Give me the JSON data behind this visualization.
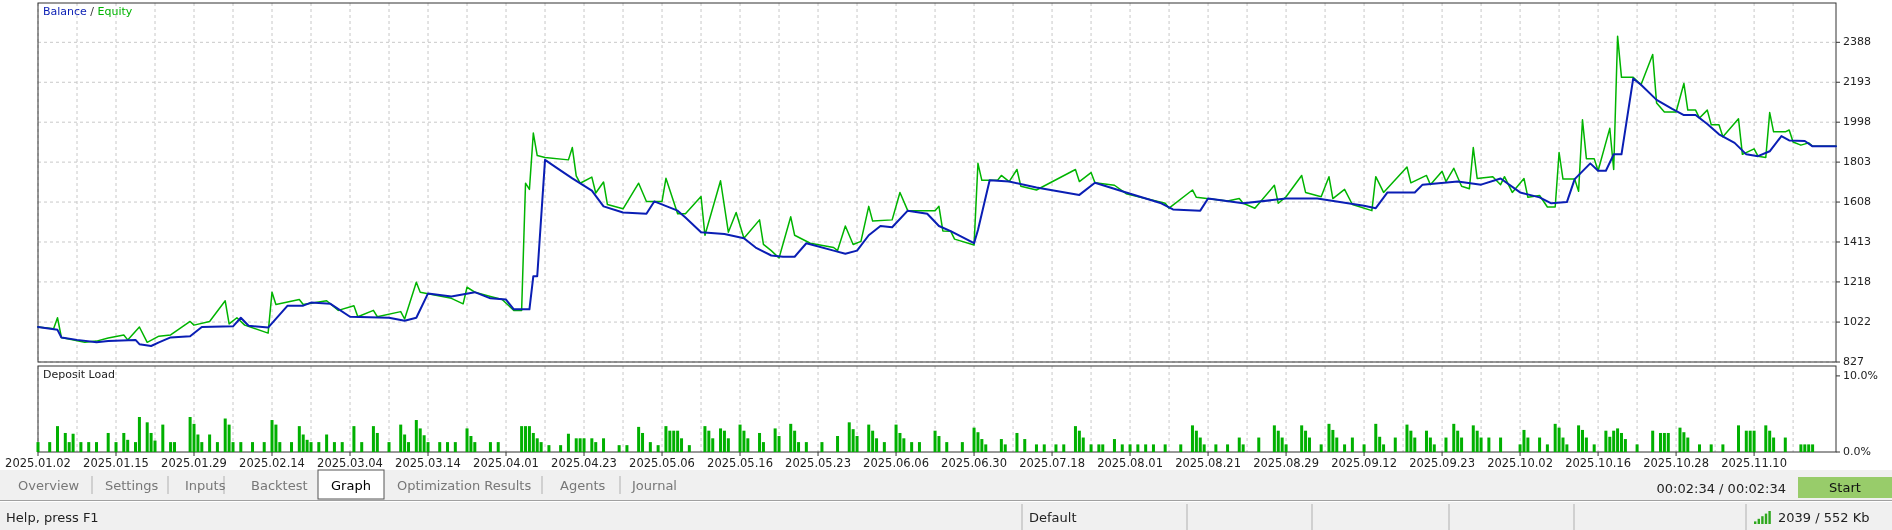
{
  "chart_data": [
    {
      "type": "line",
      "tick_labels": "y",
      "legend": "top left",
      "annotations": [
        "/"
      ],
      "grid": true,
      "ylim": [
        827,
        2580
      ],
      "yticks": [
        827,
        1022,
        1218,
        1413,
        1608,
        1803,
        1998,
        2193,
        2388
      ],
      "categories": [
        "2025.01.02",
        null,
        null,
        null,
        null,
        null,
        null,
        null,
        null,
        null,
        null,
        null,
        null,
        null,
        null,
        null,
        null,
        null,
        null,
        null,
        "2025.01.15",
        null,
        null,
        null,
        null,
        null,
        null,
        null,
        null,
        null,
        null,
        null,
        null,
        null,
        null,
        null,
        null,
        null,
        null,
        null,
        "2025.01.29",
        null,
        null,
        null,
        null,
        null,
        null,
        null,
        null,
        null,
        null,
        null,
        null,
        null,
        null,
        null,
        null,
        null,
        null,
        null,
        "2025.02.14",
        null,
        null,
        null,
        null,
        null,
        null,
        null,
        null,
        null,
        null,
        null,
        null,
        null,
        null,
        null,
        null,
        null,
        null,
        null,
        "2025.03.04",
        null,
        null,
        null,
        null,
        null,
        null,
        null,
        null,
        null,
        null,
        null,
        null,
        null,
        null,
        null,
        null,
        null,
        null,
        null,
        "2025.03.14",
        null,
        null,
        null,
        null,
        null,
        null,
        null,
        null,
        null,
        null,
        null,
        null,
        null,
        null,
        null,
        null,
        null,
        null,
        null,
        "2025.04.01",
        null,
        null,
        null,
        null,
        null,
        null,
        null,
        null,
        null,
        null,
        null,
        null,
        null,
        null,
        null,
        null,
        null,
        null,
        null,
        "2025.04.23",
        null,
        null,
        null,
        null,
        null,
        null,
        null,
        null,
        null,
        null,
        null,
        null,
        null,
        null,
        null,
        null,
        null,
        null,
        null,
        "2025.05.06",
        null,
        null,
        null,
        null,
        null,
        null,
        null,
        null,
        null,
        null,
        null,
        null,
        null,
        null,
        null,
        null,
        null,
        null,
        null,
        "2025.05.16",
        null,
        null,
        null,
        null,
        null,
        null,
        null,
        null,
        null,
        null,
        null,
        null,
        null,
        null,
        null,
        null,
        null,
        null,
        null,
        "2025.05.23",
        null,
        null,
        null,
        null,
        null,
        null,
        null,
        null,
        null,
        null,
        null,
        null,
        null,
        null,
        null,
        null,
        null,
        null,
        null,
        "2025.06.06",
        null,
        null,
        null,
        null,
        null,
        null,
        null,
        null,
        null,
        null,
        null,
        null,
        null,
        null,
        null,
        null,
        null,
        null,
        null,
        "2025.06.30",
        null,
        null,
        null,
        null,
        null,
        null,
        null,
        null,
        null,
        null,
        null,
        null,
        null,
        null,
        null,
        null,
        null,
        null,
        null,
        "2025.07.18",
        null,
        null,
        null,
        null,
        null,
        null,
        null,
        null,
        null,
        null,
        null,
        null,
        null,
        null,
        null,
        null,
        null,
        null,
        null,
        "2025.08.01",
        null,
        null,
        null,
        null,
        null,
        null,
        null,
        null,
        null,
        null,
        null,
        null,
        null,
        null,
        null,
        null,
        null,
        null,
        null,
        "2025.08.21",
        null,
        null,
        null,
        null,
        null,
        null,
        null,
        null,
        null,
        null,
        null,
        null,
        null,
        null,
        null,
        null,
        null,
        null,
        null,
        "2025.08.29",
        null,
        null,
        null,
        null,
        null,
        null,
        null,
        null,
        null,
        null,
        null,
        null,
        null,
        null,
        null,
        null,
        null,
        null,
        null,
        "2025.09.12",
        null,
        null,
        null,
        null,
        null,
        null,
        null,
        null,
        null,
        null,
        null,
        null,
        null,
        null,
        null,
        null,
        null,
        null,
        null,
        "2025.09.23",
        null,
        null,
        null,
        null,
        null,
        null,
        null,
        null,
        null,
        null,
        null,
        null,
        null,
        null,
        null,
        null,
        null,
        null,
        null,
        "2025.10.02",
        null,
        null,
        null,
        null,
        null,
        null,
        null,
        null,
        null,
        null,
        null,
        null,
        null,
        null,
        null,
        null,
        null,
        null,
        null,
        "2025.10.16",
        null,
        null,
        null,
        null,
        null,
        null,
        null,
        null,
        null,
        null,
        null,
        null,
        null,
        null,
        null,
        null,
        null,
        null,
        null,
        "2025.10.28",
        null,
        null,
        null,
        null,
        null,
        null,
        null,
        null,
        null,
        null,
        null,
        null,
        null,
        null,
        null,
        null,
        null,
        null,
        null,
        "2025.11.10",
        null,
        null,
        null,
        null,
        null,
        null,
        null,
        null,
        null,
        null,
        null,
        null,
        null,
        null,
        null,
        null,
        null,
        null,
        null,
        null,
        null
      ],
      "series": [
        {
          "name": "Balance",
          "color": "#0a1eb4",
          "values": [
            998,
            null,
            null,
            null,
            null,
            984,
            947,
            null,
            null,
            null,
            935,
            null,
            null,
            null,
            null,
            923,
            null,
            null,
            929,
            null,
            null,
            null,
            null,
            null,
            null,
            935,
            914,
            null,
            null,
            905,
            null,
            923,
            null,
            null,
            947,
            null,
            null,
            null,
            null,
            953,
            null,
            null,
            998,
            null,
            null,
            null,
            null,
            null,
            null,
            null,
            1001,
            null,
            1043,
            null,
            1004,
            null,
            null,
            null,
            null,
            995,
            null,
            null,
            null,
            null,
            1102,
            null,
            null,
            null,
            1102,
            null,
            1117,
            null,
            null,
            null,
            null,
            1111,
            null,
            null,
            null,
            null,
            1048,
            null,
            null,
            null,
            null,
            null,
            null,
            null,
            null,
            null,
            1043,
            null,
            null,
            null,
            1028,
            null,
            null,
            1043,
            null,
            null,
            1162,
            null,
            null,
            null,
            null,
            null,
            1147,
            null,
            null,
            null,
            null,
            null,
            1168,
            null,
            null,
            null,
            1138,
            null,
            null,
            null,
            1132,
            null,
            1084,
            null,
            null,
            null,
            1084,
            1246,
            1246,
            null,
            1814,
            null,
            null,
            1775,
            null,
            null,
            null,
            1724,
            null,
            null,
            null,
            null,
            1664,
            null,
            null,
            1587,
            null,
            null,
            null,
            null,
            1557,
            null,
            null,
            null,
            null,
            null,
            1551,
            null,
            1611,
            null,
            null,
            null,
            null,
            null,
            1566,
            null,
            1533,
            null,
            null,
            null,
            1461,
            null,
            null,
            null,
            null,
            null,
            1452,
            null,
            null,
            null,
            null,
            1431,
            null,
            null,
            1386,
            null,
            null,
            null,
            1347,
            null,
            null,
            1341,
            null,
            null,
            1341,
            null,
            null,
            1407,
            null,
            null,
            null,
            null,
            null,
            null,
            1371,
            null,
            null,
            1356,
            null,
            null,
            1371,
            null,
            null,
            1446,
            null,
            null,
            1491,
            null,
            null,
            1485,
            null,
            null,
            null,
            1566,
            null,
            null,
            null,
            null,
            1551,
            null,
            null,
            1491,
            null,
            null,
            1466,
            null,
            null,
            null,
            null,
            null,
            1407,
            1472,
            null,
            null,
            1714,
            null,
            null,
            null,
            null,
            1708,
            null,
            null,
            null,
            null,
            null,
            null,
            1679,
            null,
            null,
            null,
            null,
            null,
            null,
            null,
            null,
            null,
            null,
            1643,
            null,
            null,
            null,
            1702,
            null,
            null,
            null,
            null,
            null,
            null,
            null,
            1655,
            null,
            null,
            null,
            null,
            null,
            null,
            null,
            null,
            1602,
            null,
            null,
            1572,
            null,
            null,
            null,
            null,
            null,
            null,
            1566,
            null,
            1625,
            null,
            null,
            null,
            null,
            null,
            null,
            null,
            null,
            1602,
            null,
            null,
            null,
            null,
            null,
            null,
            null,
            null,
            null,
            null,
            1625,
            null,
            null,
            null,
            null,
            null,
            null,
            null,
            1625,
            null,
            null,
            null,
            null,
            null,
            null,
            null,
            null,
            null,
            null,
            null,
            1590,
            null,
            null,
            1578,
            null,
            null,
            1655,
            null,
            null,
            null,
            null,
            null,
            null,
            1655,
            null,
            1693,
            null,
            null,
            null,
            null,
            null,
            null,
            null,
            null,
            1708,
            null,
            null,
            null,
            null,
            null,
            1693,
            null,
            null,
            null,
            null,
            1723,
            null,
            null,
            null,
            null,
            1655,
            null,
            null,
            null,
            null,
            1631,
            null,
            null,
            1602,
            null,
            null,
            null,
            1608,
            null,
            1720,
            null,
            null,
            null,
            1797,
            null,
            1761,
            null,
            1761,
            null,
            1841,
            null,
            1841,
            null,
            null,
            2211,
            null,
            2181,
            null,
            null,
            null,
            2107,
            null,
            null,
            null,
            2063,
            null,
            null,
            2033,
            null,
            null,
            2033,
            null,
            null,
            1989,
            null,
            null,
            1939,
            null,
            null,
            null,
            1897,
            null,
            null,
            1841,
            null,
            null,
            1832,
            null,
            null,
            1856,
            null,
            null,
            1930,
            null,
            1909,
            null,
            null,
            null,
            1906,
            null,
            1880,
            null,
            null,
            null,
            null,
            null,
            1880
          ]
        },
        {
          "name": "Equity",
          "color": "#00b400",
          "values": [
            998,
            null,
            null,
            null,
            989,
            1043,
            947,
            null,
            null,
            null,
            null,
            null,
            923,
            null,
            null,
            929,
            null,
            null,
            944,
            null,
            null,
            null,
            959,
            935,
            null,
            null,
            998,
            null,
            923,
            null,
            null,
            953,
            null,
            null,
            959,
            null,
            null,
            null,
            null,
            1025,
            1007,
            null,
            null,
            null,
            1025,
            null,
            null,
            null,
            1126,
            1013,
            null,
            1043,
            null,
            1007,
            null,
            null,
            null,
            null,
            null,
            968,
            1168,
            1108,
            null,
            null,
            null,
            null,
            null,
            1132,
            1108,
            null,
            null,
            null,
            null,
            null,
            1126,
            null,
            null,
            1079,
            null,
            null,
            null,
            1102,
            1048,
            null,
            null,
            null,
            1079,
            1048,
            null,
            null,
            null,
            null,
            null,
            1073,
            1037,
            null,
            null,
            1216,
            1168,
            null,
            null,
            null,
            null,
            null,
            null,
            null,
            1138,
            null,
            null,
            1111,
            1192,
            null,
            1168,
            null,
            null,
            null,
            1147,
            null,
            null,
            1132,
            null,
            null,
            1079,
            null,
            1079,
            1700,
            1670,
            1945,
            1835,
            null,
            1826,
            null,
            null,
            null,
            null,
            null,
            1814,
            1874,
            1736,
            1700,
            null,
            null,
            1730,
            1652,
            null,
            1706,
            1596,
            null,
            null,
            null,
            1575,
            null,
            null,
            null,
            1700,
            null,
            1611,
            null,
            null,
            null,
            1611,
            1724,
            null,
            null,
            1551,
            null,
            1551,
            null,
            null,
            null,
            1635,
            1446,
            null,
            null,
            null,
            1712,
            null,
            1461,
            null,
            1557,
            null,
            1431,
            null,
            null,
            null,
            1521,
            1401,
            null,
            1371,
            null,
            1335,
            null,
            null,
            1536,
            1446,
            null,
            null,
            null,
            1407,
            null,
            null,
            null,
            null,
            null,
            1386,
            1371,
            null,
            1491,
            null,
            1401,
            null,
            1416,
            null,
            1587,
            1515,
            null,
            null,
            null,
            null,
            1521,
            null,
            1655,
            null,
            1566,
            null,
            null,
            null,
            null,
            null,
            null,
            1566,
            1587,
            1467,
            null,
            1466,
            1427,
            null,
            null,
            null,
            null,
            1398,
            1797,
            1714,
            null,
            null,
            null,
            1714,
            1738,
            null,
            1708,
            null,
            1767,
            1685,
            null,
            null,
            null,
            1667,
            null,
            null,
            null,
            null,
            null,
            null,
            null,
            null,
            null,
            1767,
            1708,
            null,
            null,
            1752,
            1702,
            null,
            null,
            null,
            null,
            1690,
            null,
            null,
            1649,
            null,
            null,
            null,
            null,
            null,
            null,
            null,
            null,
            null,
            1602,
            1578,
            null,
            null,
            null,
            null,
            null,
            1667,
            1631,
            null,
            null,
            null,
            null,
            null,
            null,
            null,
            1613,
            null,
            null,
            1625,
            1602,
            null,
            null,
            1578,
            null,
            null,
            null,
            null,
            1690,
            1602,
            null,
            1634,
            null,
            null,
            null,
            1738,
            1655,
            null,
            null,
            null,
            1634,
            null,
            1732,
            1625,
            null,
            null,
            1670,
            null,
            1596,
            null,
            null,
            null,
            null,
            1566,
            1732,
            null,
            1655,
            null,
            null,
            null,
            null,
            null,
            1779,
            1702,
            null,
            null,
            null,
            1738,
            1693,
            null,
            null,
            1758,
            1708,
            null,
            1773,
            null,
            1685,
            null,
            1673,
            1874,
            1723,
            null,
            null,
            null,
            1732,
            null,
            1693,
            1732,
            null,
            1655,
            null,
            null,
            1723,
            1631,
            null,
            null,
            1640,
            null,
            1584,
            null,
            1584,
            1850,
            1720,
            null,
            null,
            1720,
            1661,
            2010,
            1820,
            null,
            1820,
            1761,
            null,
            null,
            1968,
            1767,
            2418,
            2217,
            null,
            null,
            2217,
            null,
            2181,
            null,
            null,
            2329,
            2092,
            null,
            2048,
            null,
            null,
            2048,
            null,
            2187,
            2057,
            null,
            2057,
            2018,
            null,
            2057,
            1986,
            null,
            1986,
            1927,
            null,
            null,
            null,
            2015,
            1841,
            null,
            null,
            1868,
            1832,
            null,
            1826,
            2045,
            1951,
            null,
            null,
            1951,
            1960,
            1901,
            null,
            1886,
            null,
            1897,
            1880,
            null,
            null,
            null,
            null,
            null,
            1880
          ]
        }
      ]
    },
    {
      "type": "bar",
      "title": "Deposit Load",
      "grid": "x",
      "ylim": [
        0,
        11.3
      ],
      "yticks": [
        {
          "value": 0,
          "label": "0.0%"
        },
        {
          "value": 10,
          "label": "10.0%"
        }
      ],
      "color": "#00b000",
      "categories": [
        "2025.01.02",
        null,
        null,
        null,
        null,
        null,
        null,
        null,
        null,
        null,
        null,
        null,
        null,
        null,
        null,
        null,
        null,
        null,
        null,
        null,
        "2025.01.15",
        null,
        null,
        null,
        null,
        null,
        null,
        null,
        null,
        null,
        null,
        null,
        null,
        null,
        null,
        null,
        null,
        null,
        null,
        null,
        "2025.01.29",
        null,
        null,
        null,
        null,
        null,
        null,
        null,
        null,
        null,
        null,
        null,
        null,
        null,
        null,
        null,
        null,
        null,
        null,
        null,
        "2025.02.14",
        null,
        null,
        null,
        null,
        null,
        null,
        null,
        null,
        null,
        null,
        null,
        null,
        null,
        null,
        null,
        null,
        null,
        null,
        null,
        "2025.03.04",
        null,
        null,
        null,
        null,
        null,
        null,
        null,
        null,
        null,
        null,
        null,
        null,
        null,
        null,
        null,
        null,
        null,
        null,
        null,
        "2025.03.14",
        null,
        null,
        null,
        null,
        null,
        null,
        null,
        null,
        null,
        null,
        null,
        null,
        null,
        null,
        null,
        null,
        null,
        null,
        null,
        "2025.04.01",
        null,
        null,
        null,
        null,
        null,
        null,
        null,
        null,
        null,
        null,
        null,
        null,
        null,
        null,
        null,
        null,
        null,
        null,
        null,
        "2025.04.23",
        null,
        null,
        null,
        null,
        null,
        null,
        null,
        null,
        null,
        null,
        null,
        null,
        null,
        null,
        null,
        null,
        null,
        null,
        null,
        "2025.05.06",
        null,
        null,
        null,
        null,
        null,
        null,
        null,
        null,
        null,
        null,
        null,
        null,
        null,
        null,
        null,
        null,
        null,
        null,
        null,
        "2025.05.16",
        null,
        null,
        null,
        null,
        null,
        null,
        null,
        null,
        null,
        null,
        null,
        null,
        null,
        null,
        null,
        null,
        null,
        null,
        null,
        "2025.05.23",
        null,
        null,
        null,
        null,
        null,
        null,
        null,
        null,
        null,
        null,
        null,
        null,
        null,
        null,
        null,
        null,
        null,
        null,
        null,
        "2025.06.06",
        null,
        null,
        null,
        null,
        null,
        null,
        null,
        null,
        null,
        null,
        null,
        null,
        null,
        null,
        null,
        null,
        null,
        null,
        null,
        "2025.06.30",
        null,
        null,
        null,
        null,
        null,
        null,
        null,
        null,
        null,
        null,
        null,
        null,
        null,
        null,
        null,
        null,
        null,
        null,
        null,
        "2025.07.18",
        null,
        null,
        null,
        null,
        null,
        null,
        null,
        null,
        null,
        null,
        null,
        null,
        null,
        null,
        null,
        null,
        null,
        null,
        null,
        "2025.08.01",
        null,
        null,
        null,
        null,
        null,
        null,
        null,
        null,
        null,
        null,
        null,
        null,
        null,
        null,
        null,
        null,
        null,
        null,
        null,
        "2025.08.21",
        null,
        null,
        null,
        null,
        null,
        null,
        null,
        null,
        null,
        null,
        null,
        null,
        null,
        null,
        null,
        null,
        null,
        null,
        null,
        "2025.08.29",
        null,
        null,
        null,
        null,
        null,
        null,
        null,
        null,
        null,
        null,
        null,
        null,
        null,
        null,
        null,
        null,
        null,
        null,
        null,
        "2025.09.12",
        null,
        null,
        null,
        null,
        null,
        null,
        null,
        null,
        null,
        null,
        null,
        null,
        null,
        null,
        null,
        null,
        null,
        null,
        null,
        "2025.09.23",
        null,
        null,
        null,
        null,
        null,
        null,
        null,
        null,
        null,
        null,
        null,
        null,
        null,
        null,
        null,
        null,
        null,
        null,
        null,
        "2025.10.02",
        null,
        null,
        null,
        null,
        null,
        null,
        null,
        null,
        null,
        null,
        null,
        null,
        null,
        null,
        null,
        null,
        null,
        null,
        null,
        "2025.10.16",
        null,
        null,
        null,
        null,
        null,
        null,
        null,
        null,
        null,
        null,
        null,
        null,
        null,
        null,
        null,
        null,
        null,
        null,
        null,
        "2025.10.28",
        null,
        null,
        null,
        null,
        null,
        null,
        null,
        null,
        null,
        null,
        null,
        null,
        null,
        null,
        null,
        null,
        null,
        null,
        null,
        "2025.11.10",
        null,
        null,
        null,
        null,
        null,
        null,
        null,
        null,
        null,
        null,
        null,
        null,
        null,
        null,
        null,
        null,
        null,
        null,
        null,
        null,
        null
      ],
      "values": [
        1.3,
        null,
        null,
        1.3,
        null,
        3.4,
        null,
        2.5,
        1.3,
        2.4,
        null,
        1.3,
        null,
        1.3,
        null,
        1.3,
        null,
        null,
        2.5,
        null,
        1.3,
        null,
        2.5,
        1.6,
        null,
        1.3,
        4.6,
        null,
        3.9,
        2.5,
        1.5,
        null,
        3.6,
        null,
        1.3,
        1.3,
        null,
        null,
        null,
        4.6,
        3.7,
        2.3,
        1.3,
        null,
        2.3,
        null,
        1.3,
        null,
        4.4,
        3.6,
        1.3,
        null,
        1.3,
        null,
        null,
        1.3,
        null,
        null,
        1.3,
        null,
        4.2,
        3.6,
        1.3,
        null,
        null,
        1.3,
        null,
        3.4,
        2.3,
        1.6,
        1.3,
        null,
        1.3,
        null,
        2.3,
        null,
        1.3,
        null,
        1.3,
        null,
        null,
        3.4,
        null,
        1.3,
        null,
        null,
        3.4,
        2.5,
        null,
        null,
        1.3,
        null,
        null,
        3.6,
        2.3,
        1.3,
        null,
        4.2,
        3.1,
        2.2,
        1.3,
        null,
        null,
        1.3,
        null,
        1.3,
        null,
        1.3,
        null,
        null,
        3.1,
        2.1,
        1.3,
        null,
        null,
        null,
        1.3,
        null,
        1.3,
        null,
        null,
        null,
        null,
        null,
        3.4,
        3.4,
        3.4,
        2.5,
        1.8,
        1.3,
        null,
        0.9,
        null,
        null,
        0.9,
        null,
        2.4,
        null,
        1.8,
        1.8,
        1.8,
        null,
        1.8,
        1.3,
        null,
        1.8,
        null,
        null,
        null,
        0.9,
        null,
        0.9,
        null,
        null,
        3.3,
        2.5,
        null,
        1.3,
        null,
        0.9,
        null,
        3.4,
        2.8,
        2.8,
        2.8,
        1.8,
        null,
        0.9,
        null,
        null,
        null,
        3.4,
        2.8,
        1.8,
        null,
        3.1,
        2.8,
        1.8,
        null,
        null,
        3.6,
        2.8,
        1.8,
        null,
        null,
        2.5,
        1.3,
        null,
        null,
        3.1,
        2.1,
        null,
        null,
        3.7,
        2.8,
        1.3,
        null,
        1.3,
        null,
        null,
        null,
        1.3,
        null,
        null,
        null,
        2.1,
        null,
        null,
        3.9,
        3.0,
        2.1,
        null,
        null,
        3.6,
        2.8,
        1.8,
        null,
        1.3,
        null,
        null,
        3.6,
        2.5,
        1.8,
        null,
        1.3,
        null,
        1.3,
        null,
        null,
        null,
        2.8,
        2.1,
        null,
        1.3,
        null,
        null,
        null,
        1.3,
        null,
        null,
        3.2,
        2.6,
        1.7,
        1.0,
        null,
        null,
        null,
        1.7,
        1.0,
        null,
        null,
        2.5,
        null,
        1.7,
        null,
        null,
        1.0,
        null,
        1.0,
        null,
        null,
        1.0,
        null,
        1.0,
        null,
        null,
        3.4,
        2.8,
        1.9,
        null,
        1.0,
        null,
        1.0,
        1.0,
        null,
        null,
        1.7,
        null,
        1.0,
        null,
        1.0,
        null,
        1.0,
        null,
        1.0,
        null,
        1.0,
        null,
        null,
        1.0,
        null,
        null,
        null,
        1.0,
        null,
        null,
        3.5,
        2.8,
        1.9,
        1.0,
        null,
        null,
        1.0,
        null,
        null,
        1.0,
        null,
        null,
        1.9,
        1.0,
        null,
        null,
        null,
        1.9,
        null,
        null,
        null,
        3.5,
        2.8,
        1.9,
        1.0,
        null,
        null,
        null,
        3.5,
        2.8,
        1.9,
        null,
        null,
        1.0,
        null,
        3.7,
        2.9,
        1.9,
        null,
        1.0,
        null,
        1.9,
        null,
        null,
        1.0,
        null,
        null,
        3.7,
        2.0,
        1.0,
        null,
        null,
        1.9,
        null,
        null,
        3.6,
        2.8,
        1.9,
        null,
        null,
        2.8,
        1.9,
        1.0,
        null,
        null,
        1.9,
        null,
        3.7,
        2.8,
        1.9,
        null,
        null,
        3.5,
        2.8,
        1.9,
        null,
        1.9,
        null,
        null,
        1.9,
        null,
        null,
        null,
        null,
        1.0,
        2.9,
        1.9,
        null,
        null,
        1.9,
        null,
        1.0,
        null,
        3.7,
        3.2,
        1.9,
        1.0,
        null,
        null,
        3.5,
        2.9,
        1.9,
        null,
        1.0,
        null,
        null,
        2.8,
        2.0,
        2.8,
        3.1,
        2.5,
        1.7,
        null,
        null,
        1.0,
        null,
        null,
        null,
        2.8,
        null,
        2.5,
        2.5,
        2.5,
        null,
        null,
        3.2,
        2.6,
        1.9,
        null,
        null,
        1.0,
        null,
        null,
        1.0,
        null,
        null,
        1.0,
        null,
        null,
        null,
        3.5,
        null,
        2.8,
        2.8,
        2.8,
        null,
        null,
        3.5,
        2.8,
        1.9,
        null,
        null,
        1.9,
        null,
        null,
        null,
        1.0,
        1.0,
        1.0,
        1.0,
        null,
        null,
        null,
        null,
        null,
        null
      ]
    },
    {
      "type": "other",
      "annotations": [
        "Overview",
        "Settings",
        "Inputs",
        "Backtest",
        "Graph",
        "Optimization Results",
        "Agents",
        "Journal",
        "00:02:34 / 00:02:34",
        "Start",
        "Help, press F1",
        "Default",
        "2039 / 552 Kb"
      ]
    }
  ]
}
